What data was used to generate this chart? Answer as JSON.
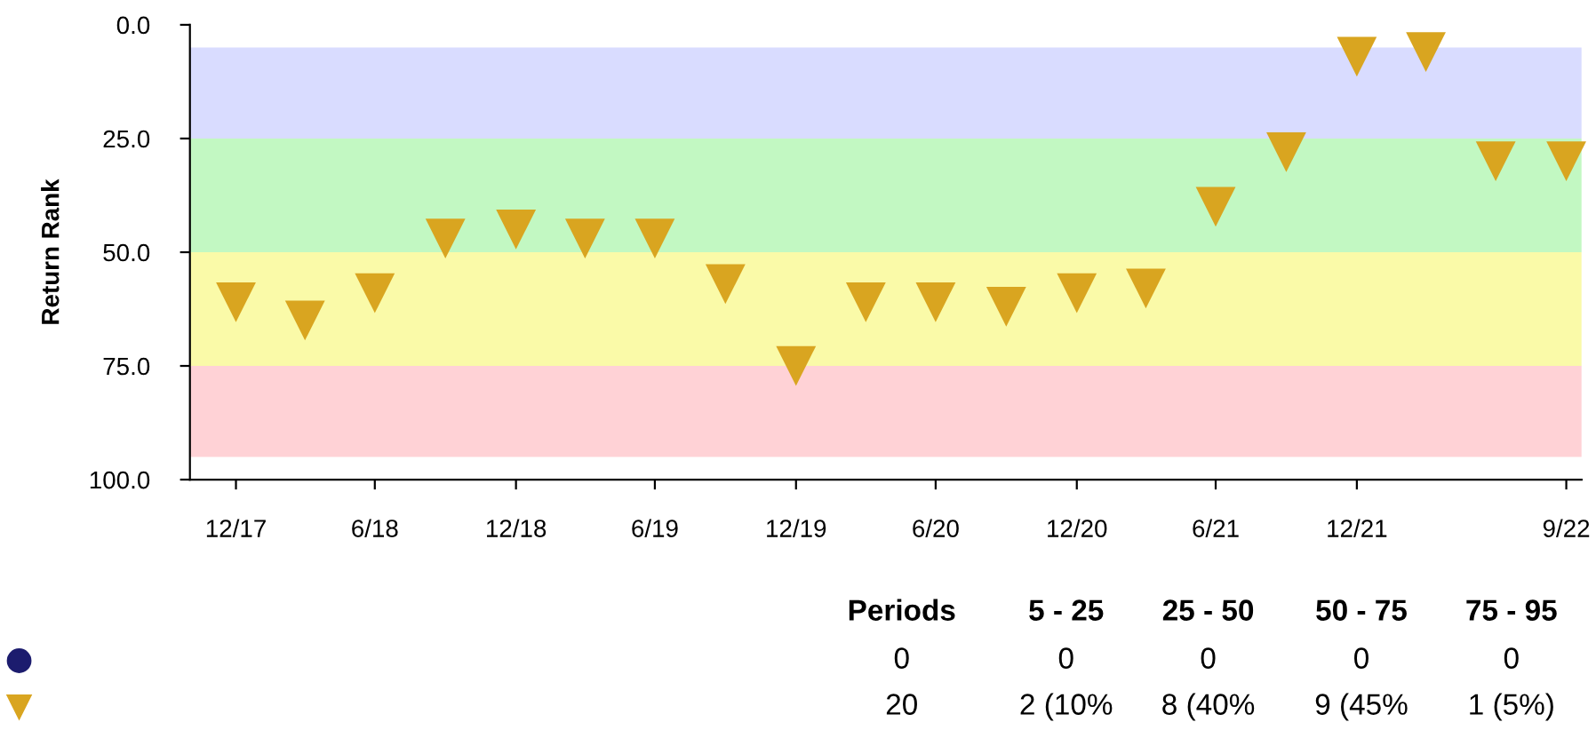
{
  "chart_data": {
    "type": "scatter",
    "ylabel": "Return Rank",
    "x": [
      "2017-12-31",
      "2018-03-31",
      "2018-06-30",
      "2018-09-30",
      "2018-12-31",
      "2019-03-31",
      "2019-06-30",
      "2019-09-30",
      "2019-12-31",
      "2020-03-31",
      "2020-06-30",
      "2020-09-30",
      "2020-12-31",
      "2021-03-31",
      "2021-06-30",
      "2021-09-30",
      "2021-12-31",
      "2022-03-31",
      "2022-06-30",
      "2022-09-30"
    ],
    "series": [
      {
        "color": "#1c1c6e",
        "marker": "circle",
        "values": [
          null,
          null,
          null,
          null,
          null,
          null,
          null,
          null,
          null,
          null,
          null,
          null,
          null,
          null,
          null,
          null,
          null,
          null,
          null,
          null
        ]
      },
      {
        "color": "#d9a520",
        "marker": "triangle",
        "values": [
          61,
          65,
          59,
          47,
          45,
          47,
          47,
          57,
          75,
          61,
          61,
          62,
          59,
          58,
          40,
          28,
          7,
          6,
          30,
          30
        ]
      }
    ],
    "xlim": [
      "2017-11-01",
      "2022-10-20"
    ],
    "xticks": [
      {
        "value": "2017-12-31",
        "label": "12/17"
      },
      {
        "value": "2018-06-30",
        "label": "6/18"
      },
      {
        "value": "2018-12-31",
        "label": "12/18"
      },
      {
        "value": "2019-06-30",
        "label": "6/19"
      },
      {
        "value": "2019-12-31",
        "label": "12/19"
      },
      {
        "value": "2020-06-30",
        "label": "6/20"
      },
      {
        "value": "2020-12-31",
        "label": "12/20"
      },
      {
        "value": "2021-06-30",
        "label": "6/21"
      },
      {
        "value": "2021-12-31",
        "label": "12/21"
      },
      {
        "value": "2022-09-30",
        "label": "9/22"
      }
    ],
    "ylim": [
      100,
      0
    ],
    "yticks": [
      {
        "value": 0,
        "label": "0.0"
      },
      {
        "value": 25,
        "label": "25.0"
      },
      {
        "value": 50,
        "label": "50.0"
      },
      {
        "value": 75,
        "label": "75.0"
      },
      {
        "value": 100,
        "label": "100.0"
      }
    ],
    "bands": [
      {
        "axis": "y",
        "from": 5,
        "to": 25,
        "color": "#d9dcff"
      },
      {
        "axis": "y",
        "from": 25,
        "to": 50,
        "color": "#c2f8c2"
      },
      {
        "axis": "y",
        "from": 50,
        "to": 75,
        "color": "#fafaa8"
      },
      {
        "axis": "y",
        "from": 75,
        "to": 95,
        "color": "#ffd2d6"
      }
    ],
    "grid": false,
    "annotations": [
      "Periods",
      "5 - 25",
      "25 - 50",
      "50 - 75",
      "75 - 95",
      "0",
      "0",
      "0",
      "0",
      "0",
      "20",
      "2 (10%",
      "8 (40%",
      "9 (45%",
      "1 (5%)"
    ]
  }
}
